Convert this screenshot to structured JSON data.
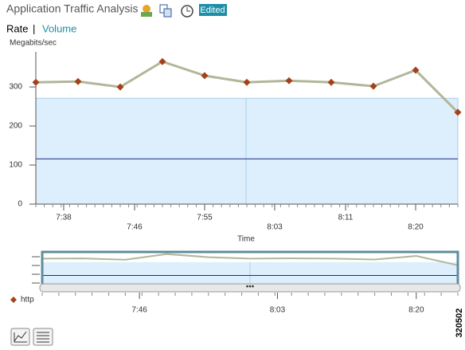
{
  "header": {
    "title": "Application Traffic Analysis",
    "badge": "Edited"
  },
  "tabs": {
    "active": "Rate",
    "separator": "|",
    "other": "Volume"
  },
  "legend_label": "http",
  "figure_id": "320502",
  "chart_data": [
    {
      "type": "line",
      "y_label": "Megabits/sec",
      "x_label": "Time",
      "x": [
        455,
        460,
        465,
        470,
        475,
        480,
        485,
        490,
        495,
        500,
        505
      ],
      "series": [
        {
          "name": "http",
          "color": "#b3b699",
          "marker_color": "#a3411b",
          "values": [
            312,
            314,
            300,
            365,
            329,
            312,
            316,
            312,
            302,
            343,
            235
          ]
        }
      ],
      "shaded_range": [
        0,
        271
      ],
      "shaded_color": "#ddeefc",
      "reference_value": 116,
      "reference_color": "#1c2a8c",
      "xlim": [
        455,
        505
      ],
      "xticks": [
        {
          "value": 458.3,
          "label": "7:38"
        },
        {
          "value": 466.7,
          "label": "7:46"
        },
        {
          "value": 475,
          "label": "7:55"
        },
        {
          "value": 483.3,
          "label": "8:03"
        },
        {
          "value": 491.7,
          "label": "8:11"
        },
        {
          "value": 500,
          "label": "8:20"
        }
      ],
      "ylim": [
        0,
        390
      ],
      "yticks": [
        0,
        100,
        200,
        300
      ]
    },
    {
      "type": "navigator",
      "xlim": [
        455,
        505
      ],
      "ylim": [
        0,
        390
      ],
      "xticks": [
        {
          "value": 466.7,
          "label": "7:46"
        },
        {
          "value": 483.3,
          "label": "8:03"
        },
        {
          "value": 500,
          "label": "8:20"
        }
      ]
    }
  ]
}
